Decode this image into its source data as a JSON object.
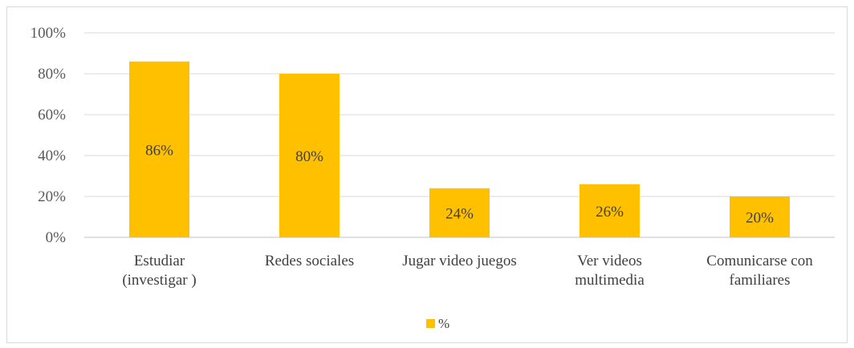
{
  "chart_data": {
    "type": "bar",
    "categories": [
      [
        "Estudiar",
        "(investigar )"
      ],
      [
        "Redes sociales"
      ],
      [
        "Jugar video juegos"
      ],
      [
        "Ver videos",
        "multimedia"
      ],
      [
        "Comunicarse con",
        "familiares"
      ]
    ],
    "series": [
      {
        "name": "%",
        "values": [
          0.86,
          0.8,
          0.24,
          0.26,
          0.2
        ],
        "labels": [
          "86%",
          "80%",
          "24%",
          "26%",
          "20%"
        ]
      }
    ],
    "ylim": [
      0,
      1
    ],
    "yticks": [
      0,
      0.2,
      0.4,
      0.6,
      0.8,
      1.0
    ],
    "ytick_labels": [
      "0%",
      "20%",
      "40%",
      "60%",
      "80%",
      "100%"
    ],
    "grid": true,
    "legend": "bottom",
    "colors": {
      "bar": "#FFC000",
      "grid": "#d9d9d9",
      "axis": "#bfbfbf"
    }
  }
}
